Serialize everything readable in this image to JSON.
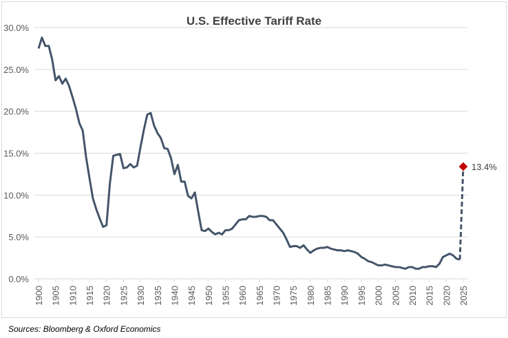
{
  "chart_data": {
    "type": "line",
    "title": "U.S. Effective Tariff Rate",
    "xlabel": "",
    "ylabel": "",
    "ylim": [
      0,
      30
    ],
    "xlim": [
      1900,
      2025
    ],
    "grid": true,
    "y_ticks": [
      "0.0%",
      "5.0%",
      "10.0%",
      "15.0%",
      "20.0%",
      "25.0%",
      "30.0%"
    ],
    "x_ticks": [
      "1900",
      "1905",
      "1910",
      "1915",
      "1920",
      "1925",
      "1930",
      "1935",
      "1940",
      "1945",
      "1950",
      "1955",
      "1960",
      "1965",
      "1970",
      "1975",
      "1980",
      "1985",
      "1990",
      "1995",
      "2000",
      "2005",
      "2010",
      "2015",
      "2020",
      "2025"
    ],
    "colors": {
      "line": "#44546a",
      "highlight": "#c00000",
      "grid": "#d9d9d9"
    },
    "series": [
      {
        "x_start": 1900,
        "values": [
          27.5,
          28.8,
          27.8,
          27.8,
          26.2,
          23.7,
          24.2,
          23.3,
          23.9,
          23.0,
          21.7,
          20.3,
          18.6,
          17.7,
          14.5,
          12.0,
          9.6,
          8.3,
          7.2,
          6.2,
          6.4,
          11.4,
          14.7,
          14.8,
          14.9,
          13.2,
          13.3,
          13.7,
          13.3,
          13.5,
          15.7,
          17.8,
          19.6,
          19.8,
          18.3,
          17.4,
          16.8,
          15.6,
          15.5,
          14.4,
          12.5,
          13.6,
          11.6,
          11.6,
          9.9,
          9.6,
          10.3,
          8.0,
          5.8,
          5.7,
          6.0,
          5.6,
          5.3,
          5.5,
          5.3,
          5.8,
          5.8,
          6.0,
          6.5,
          7.0,
          7.1,
          7.1,
          7.5,
          7.4,
          7.4,
          7.5,
          7.5,
          7.4,
          7.0,
          7.0,
          6.5,
          6.0,
          5.5,
          4.7,
          3.8,
          3.9,
          3.9,
          3.7,
          4.0,
          3.5,
          3.1,
          3.4,
          3.6,
          3.7,
          3.7,
          3.8,
          3.6,
          3.5,
          3.4,
          3.4,
          3.3,
          3.4,
          3.3,
          3.2,
          3.0,
          2.6,
          2.4,
          2.1,
          2.0,
          1.8,
          1.6,
          1.6,
          1.7,
          1.6,
          1.5,
          1.4,
          1.4,
          1.3,
          1.2,
          1.4,
          1.4,
          1.2,
          1.2,
          1.4,
          1.4,
          1.5,
          1.5,
          1.4,
          1.8,
          2.6,
          2.8,
          3.0,
          2.8,
          2.4,
          2.3
        ]
      }
    ],
    "projection": {
      "x": 2025,
      "value": 13.4,
      "label": "13.4%",
      "style": "dashed"
    }
  },
  "source": "Sources: Bloomberg & Oxford Economics"
}
